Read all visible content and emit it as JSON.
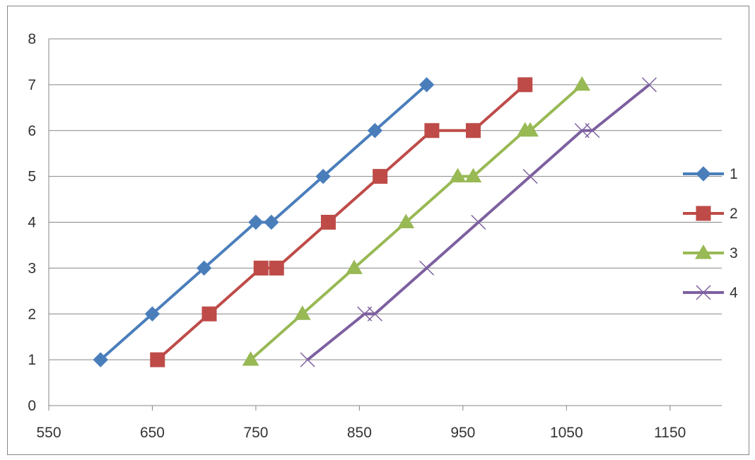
{
  "chart_data": {
    "type": "line",
    "title": "",
    "xlabel": "",
    "ylabel": "",
    "xlim": [
      550,
      1200
    ],
    "ylim": [
      0,
      8
    ],
    "x_ticks": [
      550,
      650,
      750,
      850,
      950,
      1050,
      1150
    ],
    "y_ticks": [
      0,
      1,
      2,
      3,
      4,
      5,
      6,
      7,
      8
    ],
    "grid": "horizontal major",
    "legend_position": "right",
    "series": [
      {
        "name": "1",
        "color": "#4a7ebb",
        "marker": "diamond",
        "points": [
          [
            600,
            1
          ],
          [
            650,
            2
          ],
          [
            700,
            3
          ],
          [
            750,
            4
          ],
          [
            765,
            4
          ],
          [
            815,
            5
          ],
          [
            865,
            6
          ],
          [
            915,
            7
          ]
        ]
      },
      {
        "name": "2",
        "color": "#be4b48",
        "marker": "square",
        "points": [
          [
            655,
            1
          ],
          [
            705,
            2
          ],
          [
            755,
            3
          ],
          [
            770,
            3
          ],
          [
            820,
            4
          ],
          [
            870,
            5
          ],
          [
            920,
            6
          ],
          [
            960,
            6
          ],
          [
            1010,
            7
          ]
        ]
      },
      {
        "name": "3",
        "color": "#98b954",
        "marker": "triangle",
        "points": [
          [
            745,
            1
          ],
          [
            795,
            2
          ],
          [
            845,
            3
          ],
          [
            895,
            4
          ],
          [
            945,
            5
          ],
          [
            960,
            5
          ],
          [
            1010,
            6
          ],
          [
            1015,
            6
          ],
          [
            1065,
            7
          ]
        ]
      },
      {
        "name": "4",
        "color": "#7d60a0",
        "marker": "x",
        "points": [
          [
            800,
            1
          ],
          [
            855,
            2
          ],
          [
            865,
            2
          ],
          [
            915,
            3
          ],
          [
            965,
            4
          ],
          [
            1015,
            5
          ],
          [
            1065,
            6
          ],
          [
            1075,
            6
          ],
          [
            1130,
            7
          ]
        ]
      }
    ]
  }
}
